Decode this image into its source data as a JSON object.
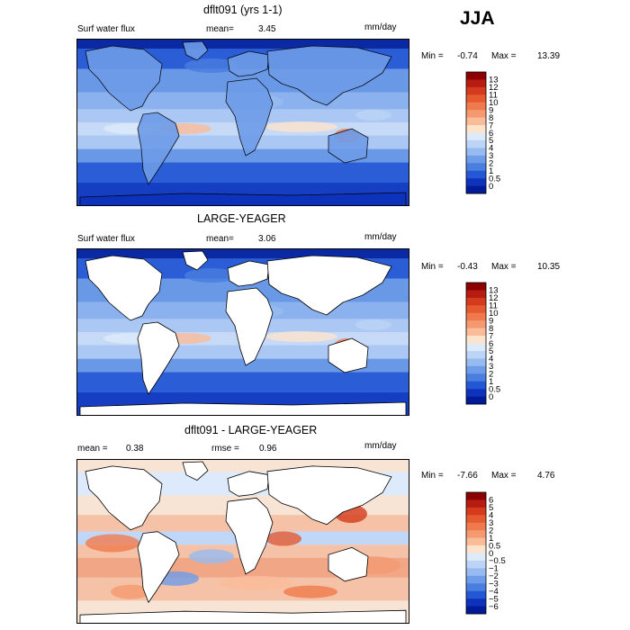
{
  "season": "JJA",
  "panels": [
    {
      "title": "dflt091 (yrs 1-1)",
      "field": "Surf water flux",
      "stat1_label": "mean=",
      "stat1_value": "3.45",
      "stat2_label": "",
      "stat2_value": "",
      "units": "mm/day",
      "min_label": "Min =",
      "min_value": "-0.74",
      "max_label": "Max =",
      "max_value": "13.39",
      "scheme": "abs",
      "colorbar_labels": [
        "13",
        "12",
        "11",
        "10",
        "9",
        "8",
        "7",
        "6",
        "5",
        "4",
        "3",
        "2",
        "1",
        "0.5",
        "0"
      ],
      "colorbar_colors": [
        "#8b0000",
        "#b71c10",
        "#d43a1c",
        "#e65a30",
        "#f07a4e",
        "#f59a70",
        "#fabb98",
        "#fde3cc",
        "#dceafa",
        "#bcd4f6",
        "#97bbf0",
        "#6e9ce8",
        "#4a7ee0",
        "#2457d4",
        "#0d32bc",
        "#001a98"
      ]
    },
    {
      "title": "LARGE-YEAGER",
      "field": "Surf water flux",
      "stat1_label": "mean=",
      "stat1_value": "3.06",
      "stat2_label": "",
      "stat2_value": "",
      "units": "mm/day",
      "min_label": "Min =",
      "min_value": "-0.43",
      "max_label": "Max =",
      "max_value": "10.35",
      "scheme": "abs",
      "colorbar_labels": [
        "13",
        "12",
        "11",
        "10",
        "9",
        "8",
        "7",
        "6",
        "5",
        "4",
        "3",
        "2",
        "1",
        "0.5",
        "0"
      ],
      "colorbar_colors": [
        "#8b0000",
        "#b71c10",
        "#d43a1c",
        "#e65a30",
        "#f07a4e",
        "#f59a70",
        "#fabb98",
        "#fde3cc",
        "#dceafa",
        "#bcd4f6",
        "#97bbf0",
        "#6e9ce8",
        "#4a7ee0",
        "#2457d4",
        "#0d32bc",
        "#001a98"
      ]
    },
    {
      "title": "dflt091 - LARGE-YEAGER",
      "field": "",
      "stat1_label": "mean =",
      "stat1_value": "0.38",
      "stat2_label": "rmse =",
      "stat2_value": "0.96",
      "units": "mm/day",
      "min_label": "Min =",
      "min_value": "-7.66",
      "max_label": "Max =",
      "max_value": "4.76",
      "scheme": "diff",
      "colorbar_labels": [
        "6",
        "5",
        "4",
        "3",
        "2",
        "1",
        "0.5",
        "0",
        "-0.5",
        "-1",
        "-2",
        "-3",
        "-4",
        "-5",
        "-6"
      ],
      "colorbar_colors": [
        "#8b0000",
        "#b71c10",
        "#d43a1c",
        "#e65a30",
        "#f07a4e",
        "#f59a70",
        "#fabb98",
        "#fde3cc",
        "#dceafa",
        "#bcd4f6",
        "#97bbf0",
        "#6e9ce8",
        "#4a7ee0",
        "#2457d4",
        "#0d32bc",
        "#001a98"
      ]
    }
  ]
}
